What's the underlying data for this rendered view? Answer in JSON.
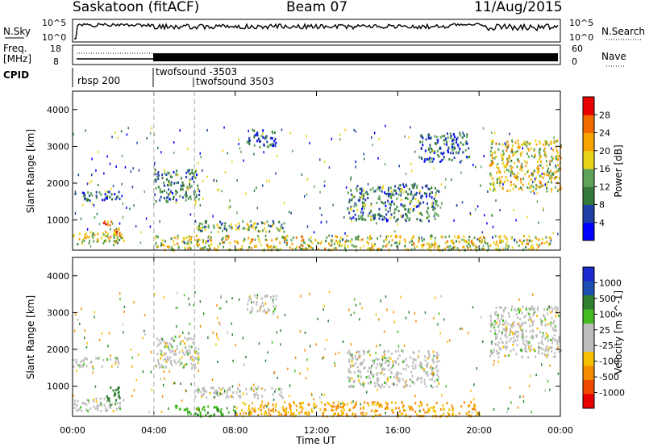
{
  "header": {
    "station": "Saskatoon (fitACF)",
    "beam": "Beam 07",
    "date": "11/Aug/2015"
  },
  "noise_panel": {
    "left_label": "N.Sky",
    "left_ticks": [
      "10^5",
      "10^0"
    ],
    "right_ticks": [
      "10^5",
      "10^0"
    ],
    "right_label": "N.Search"
  },
  "freq_panel": {
    "left_label_1": "Freq.",
    "left_label_2": "[MHz]",
    "left_ticks": [
      "18",
      "8"
    ],
    "right_ticks": [
      "60",
      "0"
    ],
    "right_label": "Nave"
  },
  "cpid_panel": {
    "label": "CPID",
    "programs": [
      {
        "name": "rbsp 200",
        "start_hour": 0.0
      },
      {
        "name": "twofsound -3503",
        "start_hour": 4.0
      },
      {
        "name": "twofsound 3503",
        "start_hour": 6.0
      }
    ]
  },
  "colors": {
    "power_scale": [
      "#0000ff",
      "#1f3fa6",
      "#337a3a",
      "#5fa35a",
      "#e8d21a",
      "#f5a400",
      "#f06a00",
      "#e60000"
    ],
    "velocity_scale": [
      "#e60000",
      "#f04a00",
      "#f58a00",
      "#f5c000",
      "#bdbdbd",
      "#bdbdbd",
      "#44bb22",
      "#2e7f2e",
      "#1c4fb0",
      "#1b2bd0"
    ]
  },
  "chart_data": [
    {
      "type": "heatmap",
      "name": "Power",
      "ylabel": "Slant Range [km]",
      "xlim": [
        0,
        24
      ],
      "ylim": [
        180,
        4500
      ],
      "yticks": [
        "1000",
        "2000",
        "3000",
        "4000"
      ],
      "colorbar": {
        "label": "Power [dB]",
        "range": [
          0,
          32
        ],
        "ticks": [
          "4",
          "8",
          "12",
          "16",
          "20",
          "24",
          "28"
        ]
      },
      "echo_regions": [
        {
          "t": [
            0.0,
            2.5
          ],
          "r": [
            350,
            700
          ],
          "value": 16
        },
        {
          "t": [
            0.0,
            2.3
          ],
          "r": [
            1550,
            1800
          ],
          "value": 8
        },
        {
          "t": [
            1.5,
            2.3
          ],
          "r": [
            500,
            1000
          ],
          "value": 22
        },
        {
          "t": [
            4.0,
            6.2
          ],
          "r": [
            1500,
            2400
          ],
          "value": 10
        },
        {
          "t": [
            6.0,
            10.5
          ],
          "r": [
            700,
            1000
          ],
          "value": 14
        },
        {
          "t": [
            4.0,
            23.5
          ],
          "r": [
            200,
            600
          ],
          "value": 18
        },
        {
          "t": [
            8.5,
            10.0
          ],
          "r": [
            3000,
            3500
          ],
          "value": 8
        },
        {
          "t": [
            13.5,
            18.0
          ],
          "r": [
            1000,
            2000
          ],
          "value": 10
        },
        {
          "t": [
            17.0,
            19.5
          ],
          "r": [
            2600,
            3400
          ],
          "value": 8
        },
        {
          "t": [
            20.5,
            24.0
          ],
          "r": [
            1800,
            3200
          ],
          "value": 18
        }
      ]
    },
    {
      "type": "heatmap",
      "name": "Velocity",
      "ylabel": "Slant Range [km]",
      "xlabel": "Time UT",
      "xlim": [
        0,
        24
      ],
      "ylim": [
        180,
        4500
      ],
      "yticks": [
        "1000",
        "2000",
        "3000",
        "4000"
      ],
      "xticks": [
        "00:00",
        "04:00",
        "08:00",
        "12:00",
        "16:00",
        "20:00",
        "00:00"
      ],
      "colorbar": {
        "label": "Velocity [m s^-1]",
        "ticks": [
          "-1000",
          "-500",
          "-100",
          "-25",
          "25",
          "100",
          "500",
          "1000"
        ]
      },
      "echo_regions": [
        {
          "t": [
            0.0,
            2.5
          ],
          "r": [
            350,
            700
          ],
          "value": 0
        },
        {
          "t": [
            0.0,
            2.3
          ],
          "r": [
            1550,
            1800
          ],
          "value": 0
        },
        {
          "t": [
            1.5,
            2.3
          ],
          "r": [
            500,
            1000
          ],
          "value": 150
        },
        {
          "t": [
            4.0,
            6.2
          ],
          "r": [
            1500,
            2400
          ],
          "value": 0
        },
        {
          "t": [
            6.0,
            10.5
          ],
          "r": [
            700,
            1000
          ],
          "value": 0
        },
        {
          "t": [
            5.0,
            8.0
          ],
          "r": [
            200,
            500
          ],
          "value": 80
        },
        {
          "t": [
            8.0,
            20.0
          ],
          "r": [
            200,
            600
          ],
          "value": -100
        },
        {
          "t": [
            8.5,
            10.0
          ],
          "r": [
            3000,
            3500
          ],
          "value": 0
        },
        {
          "t": [
            13.5,
            18.0
          ],
          "r": [
            1000,
            2000
          ],
          "value": 0
        },
        {
          "t": [
            20.5,
            24.0
          ],
          "r": [
            1800,
            3200
          ],
          "value": 0
        }
      ]
    }
  ]
}
